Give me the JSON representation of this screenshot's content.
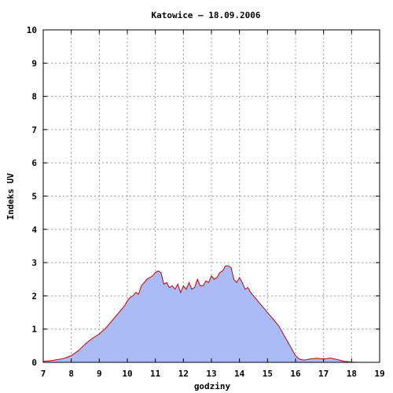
{
  "chart_data": {
    "type": "area",
    "title": "Katowice – 18.09.2006",
    "xlabel": "godziny",
    "ylabel": "Indeks UV",
    "xlim": [
      7,
      19
    ],
    "ylim": [
      0,
      10
    ],
    "x_ticks": [
      "7",
      "8",
      "9",
      "10",
      "11",
      "12",
      "13",
      "14",
      "15",
      "16",
      "17",
      "18",
      "19"
    ],
    "y_ticks": [
      "0",
      "1",
      "2",
      "3",
      "4",
      "5",
      "6",
      "7",
      "8",
      "9",
      "10"
    ],
    "grid": true,
    "colors": {
      "fill": "#aabbf5",
      "line": "#cc0000",
      "grid": "#999999",
      "axis": "#000000"
    },
    "series": [
      {
        "x": [
          7.0,
          7.25,
          7.5,
          7.75,
          8.0,
          8.25,
          8.5,
          8.75,
          9.0,
          9.25,
          9.5,
          9.75,
          9.9,
          10.0,
          10.1,
          10.2,
          10.3,
          10.4,
          10.5,
          10.6,
          10.7,
          10.8,
          10.9,
          11.0,
          11.1,
          11.2,
          11.3,
          11.4,
          11.5,
          11.6,
          11.7,
          11.8,
          11.9,
          12.0,
          12.1,
          12.2,
          12.3,
          12.4,
          12.5,
          12.6,
          12.7,
          12.8,
          12.9,
          13.0,
          13.1,
          13.2,
          13.3,
          13.4,
          13.5,
          13.6,
          13.7,
          13.8,
          13.9,
          14.0,
          14.1,
          14.2,
          14.3,
          14.4,
          14.5,
          14.6,
          14.7,
          14.8,
          14.9,
          15.0,
          15.1,
          15.2,
          15.3,
          15.4,
          15.5,
          15.6,
          15.7,
          15.8,
          15.9,
          16.0,
          16.1,
          16.2,
          16.3,
          16.4,
          16.5,
          16.75,
          17.0,
          17.25,
          17.5,
          17.75,
          18.0,
          18.25,
          18.5
        ],
        "y": [
          0.03,
          0.05,
          0.08,
          0.12,
          0.2,
          0.35,
          0.55,
          0.72,
          0.85,
          1.05,
          1.3,
          1.55,
          1.7,
          1.85,
          1.95,
          2.0,
          2.1,
          2.05,
          2.3,
          2.4,
          2.5,
          2.55,
          2.6,
          2.7,
          2.75,
          2.7,
          2.35,
          2.4,
          2.25,
          2.3,
          2.2,
          2.35,
          2.1,
          2.3,
          2.2,
          2.4,
          2.2,
          2.25,
          2.5,
          2.3,
          2.3,
          2.45,
          2.4,
          2.6,
          2.5,
          2.55,
          2.7,
          2.75,
          2.9,
          2.9,
          2.85,
          2.5,
          2.4,
          2.55,
          2.4,
          2.2,
          2.25,
          2.1,
          2.0,
          1.9,
          1.8,
          1.7,
          1.6,
          1.5,
          1.4,
          1.3,
          1.2,
          1.1,
          0.95,
          0.8,
          0.65,
          0.5,
          0.35,
          0.2,
          0.12,
          0.08,
          0.07,
          0.08,
          0.1,
          0.12,
          0.1,
          0.13,
          0.08,
          0.03,
          0.01,
          0.0,
          0.0
        ]
      }
    ]
  }
}
